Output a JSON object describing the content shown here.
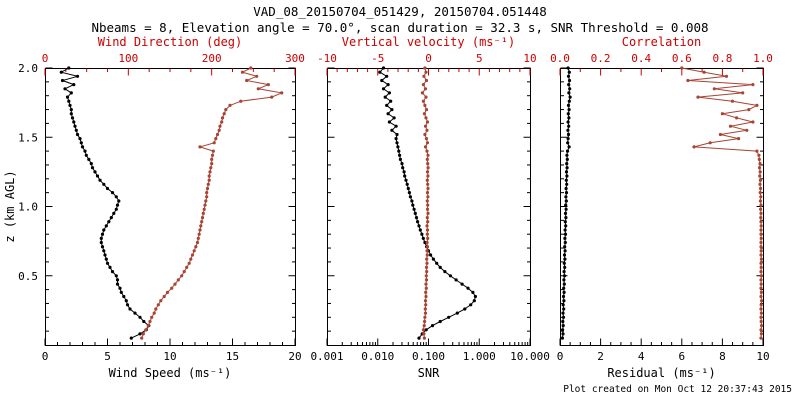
{
  "header": {
    "title": "VAD_08_20150704_051429, 20150704.051448",
    "subtitle": "Nbeams = 8, Elevation angle = 70.0°, scan duration = 32.3 s, SNR Threshold = 0.008"
  },
  "footer": {
    "created": "Plot created on Mon Oct 12 20:37:43 2015"
  },
  "colors": {
    "background": "#ffffff",
    "axis_black": "#000000",
    "accent_red_label": "#cc0000",
    "accent_red_series": "#a84434"
  },
  "chart_data": {
    "type": "line",
    "description": "VAD lidar wind profile: three vertical-profile panels sharing height axis",
    "y_axis": {
      "label": "z (km AGL)",
      "range": [
        0,
        2
      ],
      "major_tick_step": 0.5,
      "minor_tick_step": 0.1,
      "tick_labels": [
        "0.5",
        "1.0",
        "1.5",
        "2.0"
      ]
    },
    "heights_km": [
      0.05,
      0.08,
      0.11,
      0.14,
      0.17,
      0.2,
      0.23,
      0.26,
      0.29,
      0.32,
      0.35,
      0.38,
      0.41,
      0.44,
      0.47,
      0.5,
      0.53,
      0.56,
      0.59,
      0.62,
      0.65,
      0.68,
      0.71,
      0.74,
      0.77,
      0.8,
      0.83,
      0.86,
      0.89,
      0.92,
      0.95,
      0.98,
      1.01,
      1.04,
      1.07,
      1.1,
      1.13,
      1.16,
      1.19,
      1.22,
      1.25,
      1.28,
      1.31,
      1.34,
      1.37,
      1.4,
      1.43,
      1.46,
      1.49,
      1.52,
      1.55,
      1.58,
      1.61,
      1.64,
      1.67,
      1.7,
      1.73,
      1.76,
      1.79,
      1.82,
      1.85,
      1.88,
      1.91,
      1.94,
      1.97,
      2.0
    ],
    "panels": [
      {
        "id": "wind",
        "bottom_axis": {
          "label": "Wind Speed (ms⁻¹)",
          "range": [
            0,
            20
          ],
          "ticks": [
            0,
            5,
            10,
            15,
            20
          ],
          "tick_labels": [
            "0",
            "5",
            "10",
            "15",
            "20"
          ],
          "minor_step": 1,
          "series": "wind_speed_ms"
        },
        "top_axis": {
          "label": "Wind Direction (deg)",
          "range": [
            0,
            300
          ],
          "ticks": [
            0,
            100,
            200,
            300
          ],
          "tick_labels": [
            "0",
            "100",
            "200",
            "300"
          ],
          "minor_step": 25,
          "series": "wind_direction_deg"
        }
      },
      {
        "id": "snr",
        "bottom_axis": {
          "label": "SNR",
          "scale": "log",
          "range": [
            0.001,
            10
          ],
          "ticks": [
            0.001,
            0.01,
            0.1,
            1,
            10
          ],
          "tick_labels": [
            "0.001",
            "0.010",
            "0.100",
            "1.000",
            "10.000"
          ],
          "series": "snr"
        },
        "top_axis": {
          "label": "Vertical velocity (ms⁻¹)",
          "range": [
            -10,
            10
          ],
          "ticks": [
            -10,
            -5,
            0,
            5,
            10
          ],
          "tick_labels": [
            "-10",
            "-5",
            "0",
            "5",
            "10"
          ],
          "minor_step": 1,
          "series": "vertical_velocity_ms"
        }
      },
      {
        "id": "residual",
        "bottom_axis": {
          "label": "Residual (ms⁻¹)",
          "range": [
            0,
            10
          ],
          "ticks": [
            0,
            2,
            4,
            6,
            8,
            10
          ],
          "tick_labels": [
            "0",
            "2",
            "4",
            "6",
            "8",
            "10"
          ],
          "minor_step": 0.5,
          "series": "residual_ms"
        },
        "top_axis": {
          "label": "Correlation",
          "range": [
            0,
            1
          ],
          "ticks": [
            0,
            0.2,
            0.4,
            0.6,
            0.8,
            1
          ],
          "tick_labels": [
            "0.0",
            "0.2",
            "0.4",
            "0.6",
            "0.8",
            "1.0"
          ],
          "minor_step": 0.1,
          "series": "correlation"
        }
      }
    ],
    "series": {
      "wind_speed_ms": [
        6.9,
        7.6,
        8.1,
        8.3,
        7.9,
        7.6,
        7.2,
        6.8,
        6.6,
        6.5,
        6.3,
        6.1,
        6.0,
        5.8,
        5.8,
        5.7,
        5.4,
        5.2,
        5.0,
        4.9,
        4.8,
        4.7,
        4.6,
        4.5,
        4.5,
        4.6,
        4.7,
        4.9,
        5.1,
        5.3,
        5.5,
        5.7,
        5.8,
        5.9,
        5.7,
        5.4,
        5.0,
        4.7,
        4.4,
        4.2,
        4.0,
        3.8,
        3.7,
        3.5,
        3.3,
        3.2,
        3.0,
        2.9,
        2.8,
        2.6,
        2.5,
        2.4,
        2.3,
        2.2,
        2.1,
        2.1,
        2.0,
        1.9,
        1.8,
        2.1,
        1.6,
        2.3,
        1.4,
        2.6,
        1.3,
        1.9
      ],
      "wind_direction_deg": [
        116,
        118,
        121,
        124,
        126,
        128,
        131,
        133,
        136,
        139,
        143,
        147,
        152,
        156,
        160,
        164,
        167,
        170,
        173,
        175,
        177,
        179,
        181,
        183,
        184,
        185,
        186,
        187,
        188,
        189,
        190,
        191,
        192,
        193,
        194,
        194,
        195,
        196,
        197,
        197,
        198,
        199,
        200,
        200,
        201,
        202,
        186,
        203,
        205,
        207,
        209,
        210,
        212,
        213,
        215,
        217,
        222,
        235,
        272,
        284,
        256,
        268,
        242,
        254,
        237,
        247
      ],
      "snr": [
        0.065,
        0.075,
        0.09,
        0.12,
        0.17,
        0.25,
        0.37,
        0.52,
        0.68,
        0.8,
        0.84,
        0.75,
        0.6,
        0.46,
        0.35,
        0.27,
        0.21,
        0.17,
        0.145,
        0.125,
        0.11,
        0.1,
        0.092,
        0.085,
        0.079,
        0.074,
        0.069,
        0.065,
        0.061,
        0.058,
        0.055,
        0.052,
        0.049,
        0.047,
        0.044,
        0.042,
        0.04,
        0.038,
        0.036,
        0.034,
        0.033,
        0.031,
        0.03,
        0.028,
        0.027,
        0.026,
        0.025,
        0.024,
        0.023,
        0.024,
        0.019,
        0.023,
        0.017,
        0.021,
        0.016,
        0.019,
        0.015,
        0.018,
        0.014,
        0.017,
        0.013,
        0.016,
        0.012,
        0.015,
        0.011,
        0.013
      ],
      "vertical_velocity_ms": [
        -0.4,
        -0.45,
        -0.5,
        -0.42,
        -0.38,
        -0.35,
        -0.3,
        -0.32,
        -0.28,
        -0.3,
        -0.25,
        -0.28,
        -0.22,
        -0.25,
        -0.2,
        -0.22,
        -0.18,
        -0.2,
        -0.15,
        -0.18,
        -0.12,
        -0.15,
        -0.1,
        -0.14,
        -0.08,
        -0.12,
        -0.1,
        -0.15,
        -0.08,
        -0.12,
        -0.05,
        -0.1,
        -0.08,
        -0.12,
        -0.06,
        -0.1,
        -0.05,
        -0.08,
        -0.12,
        -0.06,
        -0.1,
        -0.04,
        -0.08,
        -0.12,
        -0.05,
        -0.15,
        -0.3,
        -0.1,
        -0.2,
        -0.35,
        -0.15,
        -0.3,
        -0.1,
        -0.25,
        -0.4,
        -0.2,
        -0.35,
        -0.5,
        -0.25,
        -0.6,
        -0.3,
        -0.5,
        -0.2,
        -0.45,
        -0.25,
        -0.35
      ],
      "residual_ms": [
        0.12,
        0.15,
        0.13,
        0.16,
        0.14,
        0.17,
        0.15,
        0.18,
        0.16,
        0.19,
        0.17,
        0.2,
        0.18,
        0.21,
        0.19,
        0.22,
        0.2,
        0.23,
        0.21,
        0.24,
        0.22,
        0.25,
        0.23,
        0.26,
        0.24,
        0.27,
        0.25,
        0.28,
        0.26,
        0.29,
        0.27,
        0.3,
        0.28,
        0.31,
        0.29,
        0.32,
        0.3,
        0.33,
        0.31,
        0.34,
        0.32,
        0.35,
        0.33,
        0.36,
        0.34,
        0.37,
        0.45,
        0.38,
        0.4,
        0.42,
        0.39,
        0.43,
        0.4,
        0.44,
        0.41,
        0.45,
        0.42,
        0.46,
        0.5,
        0.44,
        0.48,
        0.43,
        0.47,
        0.42,
        0.46,
        0.4
      ],
      "correlation": [
        0.99,
        0.992,
        0.99,
        0.993,
        0.991,
        0.99,
        0.992,
        0.99,
        0.991,
        0.993,
        0.99,
        0.992,
        0.99,
        0.991,
        0.99,
        0.992,
        0.99,
        0.991,
        0.99,
        0.992,
        0.99,
        0.991,
        0.99,
        0.99,
        0.991,
        0.99,
        0.99,
        0.991,
        0.99,
        0.989,
        0.99,
        0.988,
        0.99,
        0.987,
        0.989,
        0.986,
        0.988,
        0.985,
        0.987,
        0.984,
        0.986,
        0.983,
        0.985,
        0.982,
        0.98,
        0.97,
        0.66,
        0.74,
        0.88,
        0.79,
        0.92,
        0.84,
        0.95,
        0.87,
        0.8,
        0.93,
        0.97,
        0.85,
        0.68,
        0.9,
        0.76,
        0.95,
        0.63,
        0.82,
        0.71,
        0.6
      ]
    }
  }
}
